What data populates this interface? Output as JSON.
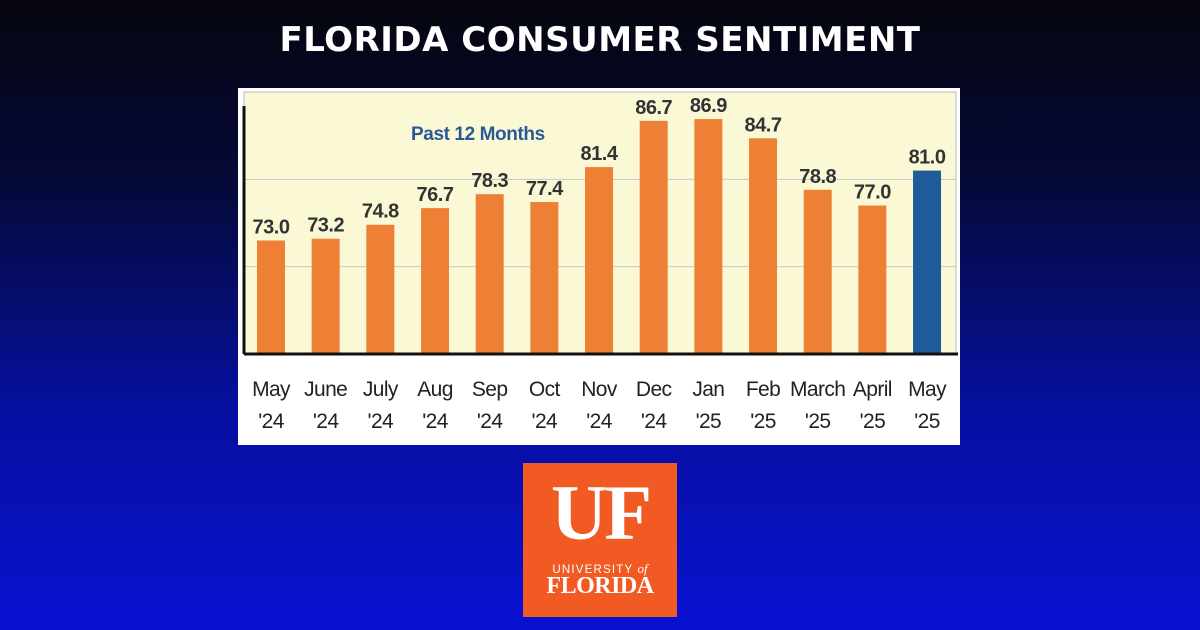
{
  "header": {
    "title": "FLORIDA CONSUMER SENTIMENT"
  },
  "chart_data": {
    "type": "bar",
    "annotation": "Past 12 Months",
    "categories": [
      [
        "May",
        "'24"
      ],
      [
        "June",
        "'24"
      ],
      [
        "July",
        "'24"
      ],
      [
        "Aug",
        "'24"
      ],
      [
        "Sep",
        "'24"
      ],
      [
        "Oct",
        "'24"
      ],
      [
        "Nov",
        "'24"
      ],
      [
        "Dec",
        "'24"
      ],
      [
        "Jan",
        "'25"
      ],
      [
        "Feb",
        "'25"
      ],
      [
        "March",
        "'25"
      ],
      [
        "April",
        "'25"
      ],
      [
        "May",
        "'25"
      ]
    ],
    "values": [
      73.0,
      73.2,
      74.8,
      76.7,
      78.3,
      77.4,
      81.4,
      86.7,
      86.9,
      84.7,
      78.8,
      77.0,
      81.0
    ],
    "value_labels": [
      "73.0",
      "73.2",
      "74.8",
      "76.7",
      "78.3",
      "77.4",
      "81.4",
      "86.7",
      "86.9",
      "84.7",
      "78.8",
      "77.0",
      "81.0"
    ],
    "highlight_index": 12,
    "ylim": [
      60,
      90
    ],
    "grid": true,
    "colors": {
      "bar": "#ee8035",
      "highlight": "#1f5a9a",
      "plot_background": "#fbf8d6",
      "annotation": "#2a5a96",
      "label": "#333333",
      "grid": "#c8c8c8"
    }
  },
  "logo": {
    "mark": "UF",
    "line1": "UNIVERSITY",
    "line1_of": "of",
    "line2": "FLORIDA",
    "color": "#f15a22"
  }
}
